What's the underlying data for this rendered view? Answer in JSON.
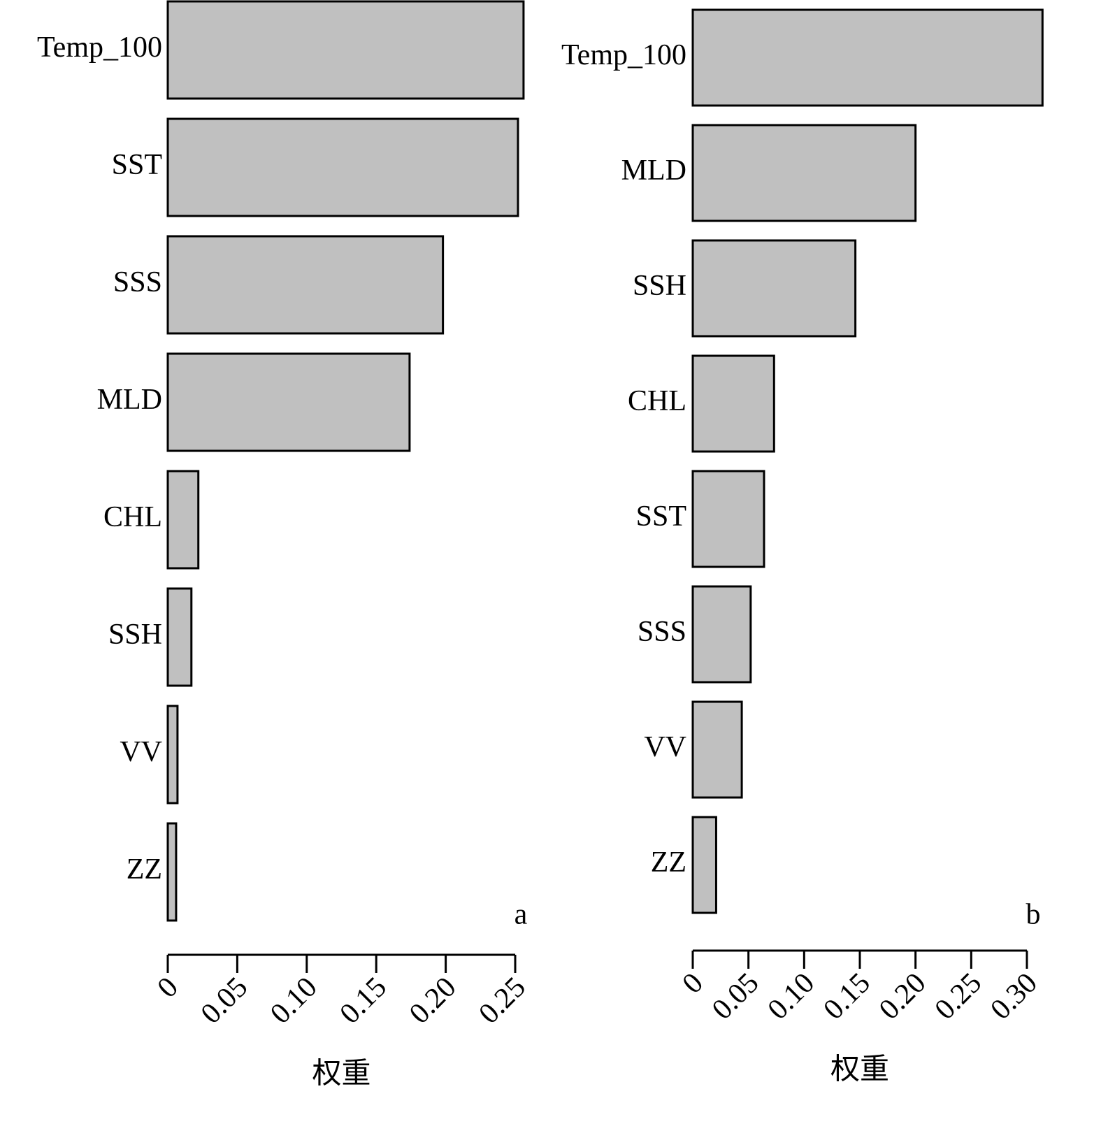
{
  "chart_data": [
    {
      "type": "barh",
      "panel_label": "a",
      "xlabel": "权重",
      "categories": [
        "Temp_100",
        "SST",
        "SSS",
        "MLD",
        "CHL",
        "SSH",
        "VV",
        "ZZ"
      ],
      "values": [
        0.256,
        0.252,
        0.198,
        0.174,
        0.022,
        0.017,
        0.007,
        0.006
      ],
      "color": "#c0c0c0",
      "xlim": [
        0,
        0.25
      ],
      "xticks": [
        0,
        0.05,
        {
          "value": 0.1,
          "label": "0.10"
        },
        0.15,
        {
          "value": 0.2,
          "label": "0.20"
        },
        0.25
      ]
    },
    {
      "type": "barh",
      "panel_label": "b",
      "xlabel": "权重",
      "categories": [
        "Temp_100",
        "MLD",
        "SSH",
        "CHL",
        "SST",
        "SSS",
        "VV",
        "ZZ"
      ],
      "values": [
        0.314,
        0.2,
        0.146,
        0.073,
        0.064,
        0.052,
        0.044,
        0.021
      ],
      "color": "#c0c0c0",
      "xlim": [
        0,
        0.3
      ],
      "xticks": [
        0,
        0.05,
        {
          "value": 0.1,
          "label": "0.10"
        },
        0.15,
        {
          "value": 0.2,
          "label": "0.20"
        },
        0.25,
        {
          "value": 0.3,
          "label": "0.30"
        }
      ]
    }
  ]
}
